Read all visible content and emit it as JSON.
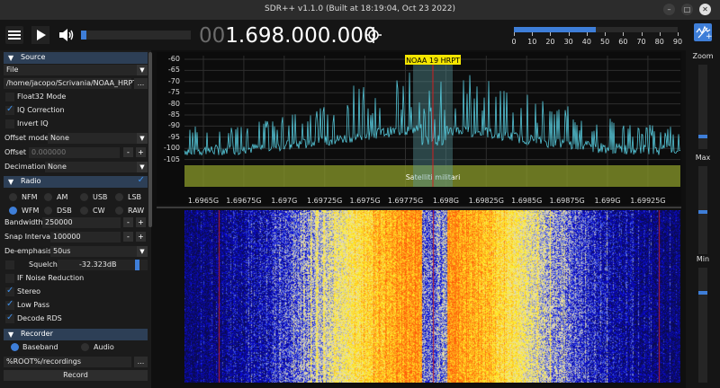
{
  "window": {
    "title": "SDR++ v1.1.0 (Built at 18:19:04, Oct 23 2022)"
  },
  "toolbar": {
    "volume": 0.05,
    "frequency_prefix": "00",
    "frequency_main": "1.698.000.000",
    "snr_level": 45,
    "snr_ticks": [
      "0",
      "10",
      "20",
      "30",
      "40",
      "50",
      "60",
      "70",
      "80",
      "90"
    ]
  },
  "sidebar": {
    "source": {
      "header": "Source",
      "type": "File",
      "path": "/home/jacopo/Scrivania/NOAA_HRPT",
      "browse": "...",
      "float32": "Float32 Mode",
      "iq_correction": "IQ Correction",
      "invert_iq": "Invert IQ",
      "offset_mode_label": "Offset mode",
      "offset_mode": "None",
      "offset_label": "Offset",
      "offset_value": "0.000000",
      "decimation_label": "Decimation",
      "decimation": "None"
    },
    "radio": {
      "header": "Radio",
      "modes": [
        "NFM",
        "AM",
        "USB",
        "LSB",
        "WFM",
        "DSB",
        "CW",
        "RAW"
      ],
      "bandwidth_label": "Bandwidth",
      "bandwidth": "250000",
      "snap_label": "Snap Interval",
      "snap": "100000",
      "deemph_label": "De-emphasis",
      "deemph": "50us",
      "squelch": "Squelch",
      "squelch_value": "-32.323dB",
      "if_nr": "IF Noise Reduction",
      "stereo": "Stereo",
      "low_pass": "Low Pass",
      "decode_rds": "Decode RDS"
    },
    "recorder": {
      "header": "Recorder",
      "baseband": "Baseband",
      "audio": "Audio",
      "path": "%ROOT%/recordings",
      "record": "Record"
    },
    "minus": "-",
    "plus": "+"
  },
  "fft": {
    "y_labels": [
      "-60",
      "-65",
      "-70",
      "-75",
      "-80",
      "-85",
      "-90",
      "-95",
      "-100",
      "-105"
    ],
    "x_labels": [
      "1.6965G",
      "1.69675G",
      "1.697G",
      "1.69725G",
      "1.6975G",
      "1.69775G",
      "1.698G",
      "1.69825G",
      "1.6985G",
      "1.69875G",
      "1.699G",
      "1.69925G"
    ],
    "vfo_label": "NOAA 19 HRPT",
    "band_label": "Satelliti militari"
  },
  "right_panel": {
    "zoom": "Zoom",
    "max": "Max",
    "min": "Min"
  },
  "colors": {
    "accent": "#3e7ed8",
    "trace": "#55c6d8",
    "band": "#8a9a2a",
    "vfo_label_bg": "#f5e600"
  }
}
